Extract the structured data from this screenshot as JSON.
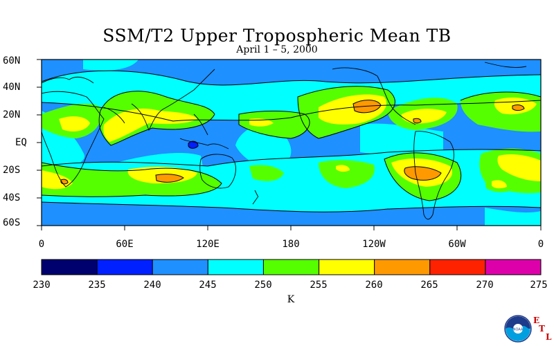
{
  "title": "SSM/T2 Upper Tropospheric Mean TB",
  "subtitle": "April 1 – 5, 2000",
  "lat_labels": [
    "60N",
    "40N",
    "20N",
    "EQ",
    "20S",
    "40S",
    "60S"
  ],
  "lon_labels": [
    "0",
    "60E",
    "120E",
    "180",
    "120W",
    "60W",
    "0"
  ],
  "colorbar": {
    "ticks": [
      "230",
      "235",
      "240",
      "245",
      "250",
      "255",
      "260",
      "265",
      "270",
      "275"
    ],
    "colors": [
      "#00006e",
      "#0020ff",
      "#1e90ff",
      "#00ffff",
      "#55ff00",
      "#ffff00",
      "#ff9900",
      "#ff2200",
      "#dd00aa"
    ],
    "units": "K"
  },
  "logo": {
    "letters": [
      "E",
      "T",
      "L"
    ],
    "agency_text": "NOAA"
  }
}
